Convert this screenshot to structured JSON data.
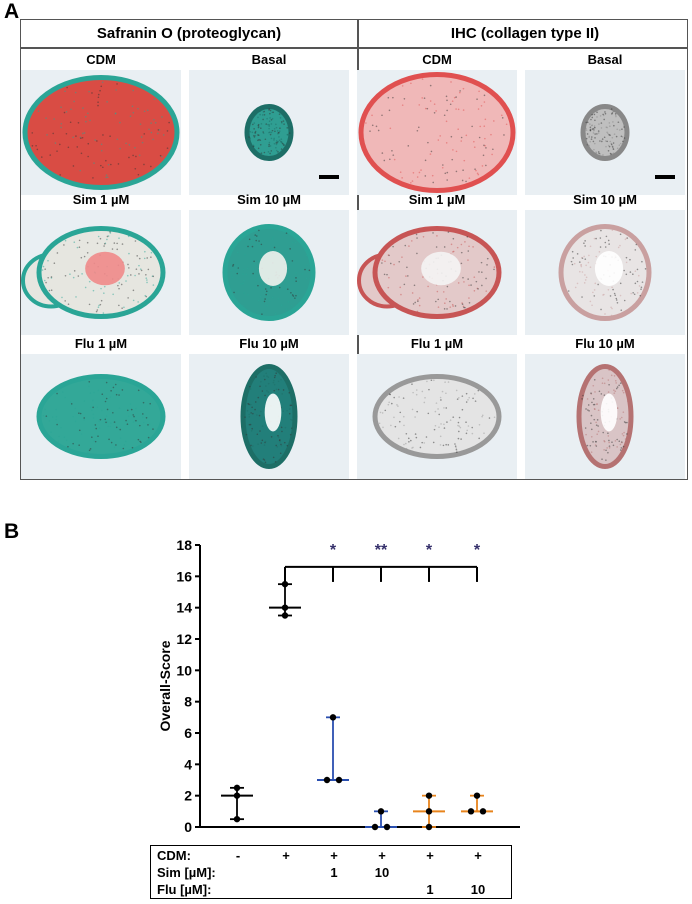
{
  "panel_a": {
    "letter": "A",
    "left_title": "Safranin O (proteoglycan)",
    "right_title": "IHC (collagen type II)",
    "tile_labels": [
      "CDM",
      "Basal",
      "Sim 1 µM",
      "Sim 10 µM",
      "Flu 1 µM",
      "Flu 10 µM"
    ]
  },
  "panel_b": {
    "letter": "B",
    "significance": [
      "*",
      "**",
      "*",
      "*"
    ],
    "conditions": {
      "row_labels": [
        "CDM:",
        "Sim [µM]:",
        "Flu [µM]:"
      ],
      "cdm": [
        "-",
        "+",
        "+",
        "+",
        "+",
        "+"
      ],
      "sim": [
        "",
        "",
        "1",
        "10",
        "",
        ""
      ],
      "flu": [
        "",
        "",
        "",
        "",
        "1",
        "10"
      ]
    }
  },
  "chart_data": {
    "type": "scatter",
    "ylabel": "Overall-Score",
    "ylim": [
      0,
      18
    ],
    "yticks": [
      0,
      2,
      4,
      6,
      8,
      10,
      12,
      14,
      16,
      18
    ],
    "groups": [
      {
        "points": [
          2.5,
          2.0,
          0.5
        ],
        "median": 2.0,
        "min": 0.5,
        "max": 2.5,
        "color": "#000000"
      },
      {
        "points": [
          15.5,
          14.0,
          13.5
        ],
        "median": 14.0,
        "min": 13.5,
        "max": 15.5,
        "color": "#000000"
      },
      {
        "points": [
          7.0,
          3.0,
          3.0
        ],
        "median": 3.0,
        "min": 3.0,
        "max": 7.0,
        "color": "#2a4fb0"
      },
      {
        "points": [
          1.0,
          0.0,
          0.0
        ],
        "median": 0.0,
        "min": 0.0,
        "max": 1.0,
        "color": "#2a4fb0"
      },
      {
        "points": [
          2.0,
          1.0,
          0.0
        ],
        "median": 1.0,
        "min": 0.0,
        "max": 2.0,
        "color": "#e8841c"
      },
      {
        "points": [
          2.0,
          1.0,
          1.0
        ],
        "median": 1.0,
        "min": 1.0,
        "max": 2.0,
        "color": "#e8841c"
      }
    ]
  }
}
